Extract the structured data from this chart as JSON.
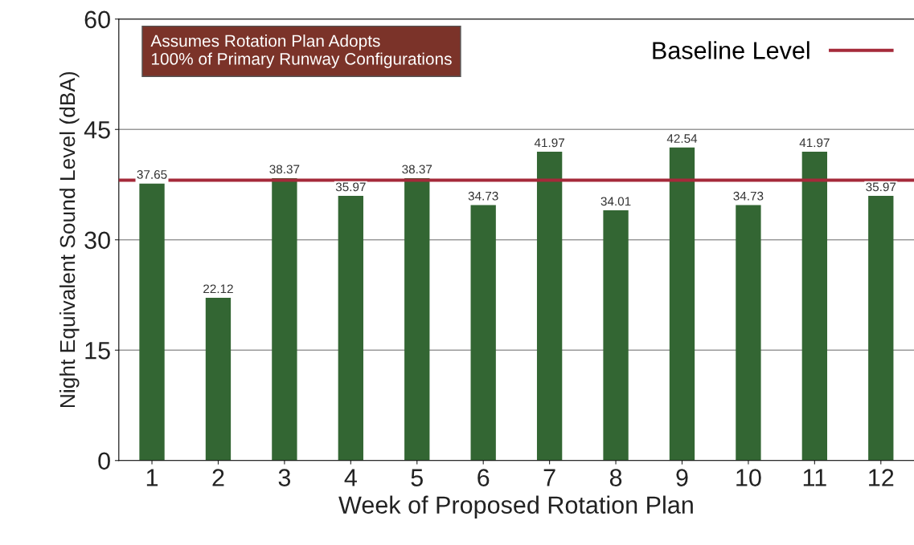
{
  "chart_data": {
    "type": "bar",
    "xlabel": "Week of Proposed Rotation Plan",
    "ylabel": "Night Equivalent Sound Level (dBA)",
    "categories": [
      "1",
      "2",
      "3",
      "4",
      "5",
      "6",
      "7",
      "8",
      "9",
      "10",
      "11",
      "12"
    ],
    "values": [
      37.65,
      22.12,
      38.37,
      35.97,
      38.37,
      34.73,
      41.97,
      34.01,
      42.54,
      34.73,
      41.97,
      35.97
    ],
    "color": "#336633",
    "data_labels": true,
    "ylim": [
      0,
      60
    ],
    "yticks": [
      0,
      15,
      30,
      45,
      60
    ],
    "grid": "y",
    "ref_lines": [
      {
        "axis": "y",
        "value": 38.1,
        "label": "Baseline Level",
        "color": "#a52a3a",
        "line_style": "solid"
      }
    ],
    "legend": "top right",
    "annotations": [
      "Assumes Rotation Plan Adopts\n100% of Primary Runway Configurations"
    ]
  }
}
